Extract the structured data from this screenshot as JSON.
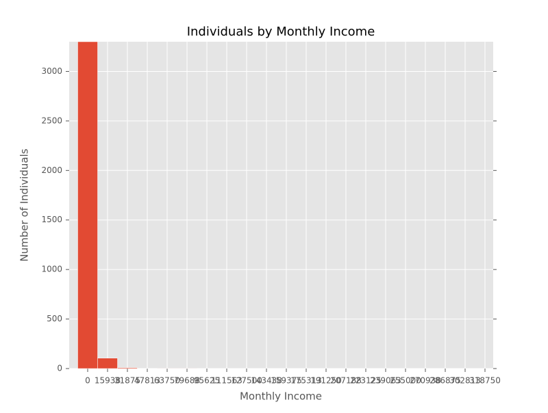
{
  "chart_data": {
    "type": "histogram",
    "title": "Individuals by Monthly Income",
    "xlabel": "Monthly Income",
    "ylabel": "Number of Individuals",
    "bins": [
      -7968.75,
      7968.75,
      23906.25,
      39843.75,
      55781.25,
      71718.75,
      87656.25,
      103593.75,
      119531.25,
      135468.75,
      151406.25,
      167343.75,
      183281.25,
      199218.75,
      215156.25,
      231093.75,
      247031.25,
      262968.75,
      278906.25,
      294843.75,
      310781.25,
      326718.75
    ],
    "values": [
      3300,
      105,
      8,
      2,
      1,
      1,
      0,
      0,
      0,
      0,
      0,
      0,
      0,
      0,
      0,
      0,
      0,
      0,
      0,
      0,
      0
    ],
    "color": "#e24a33",
    "xlim": [
      -14840,
      325340
    ],
    "xticks": [
      0,
      {
        "value": 15937.5,
        "label": "15938"
      },
      31875,
      {
        "value": 47812.5,
        "label": "47813"
      },
      63750,
      {
        "value": 79687.5,
        "label": "79688"
      },
      95625,
      {
        "value": 111562.5,
        "label": "111563"
      },
      127500,
      {
        "value": 143437.5,
        "label": "143438"
      },
      159375,
      {
        "value": 175312.5,
        "label": "175313"
      },
      191250,
      {
        "value": 207187.5,
        "label": "207188"
      },
      223125,
      {
        "value": 239062.5,
        "label": "239063"
      },
      255000,
      {
        "value": 270937.5,
        "label": "270938"
      },
      286875,
      {
        "value": 302812.5,
        "label": "302813"
      },
      318750
    ],
    "ylim": [
      0,
      3300
    ],
    "yticks": [
      0,
      500,
      1000,
      1500,
      2000,
      2500,
      3000
    ],
    "grid": true
  }
}
